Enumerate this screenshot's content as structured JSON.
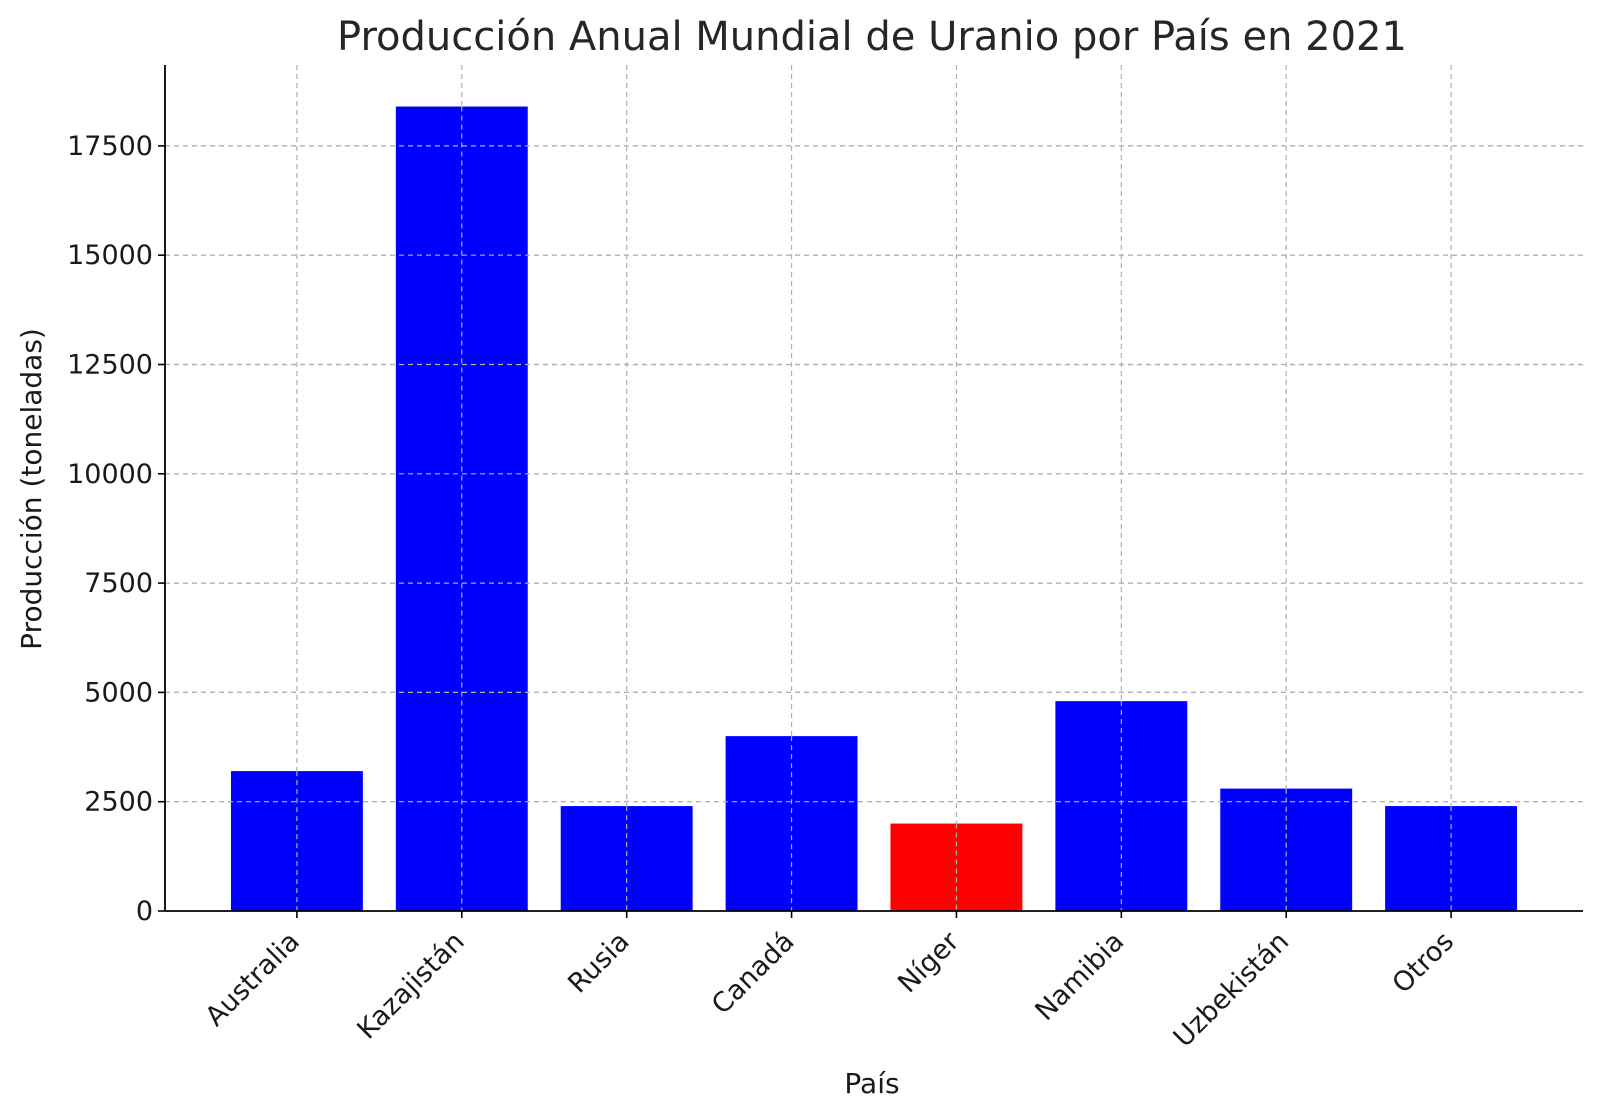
{
  "chart_data": {
    "type": "bar",
    "title": "Producción Anual Mundial de Uranio por País en 2021",
    "xlabel": "País",
    "ylabel": "Producción (toneladas)",
    "categories": [
      "Australia",
      "Kazajistán",
      "Rusia",
      "Canadá",
      "Níger",
      "Namibia",
      "Uzbekistán",
      "Otros"
    ],
    "values": [
      3200,
      18400,
      2400,
      4000,
      2000,
      4800,
      2800,
      2400
    ],
    "colors": [
      "#0000ff",
      "#0000ff",
      "#0000ff",
      "#0000ff",
      "#ff0000",
      "#0000ff",
      "#0000ff",
      "#0000ff"
    ],
    "yticks": [
      0,
      2500,
      5000,
      7500,
      10000,
      12500,
      15000,
      17500
    ],
    "ylim": [
      0,
      19350
    ],
    "grid": true,
    "legend": "none"
  }
}
